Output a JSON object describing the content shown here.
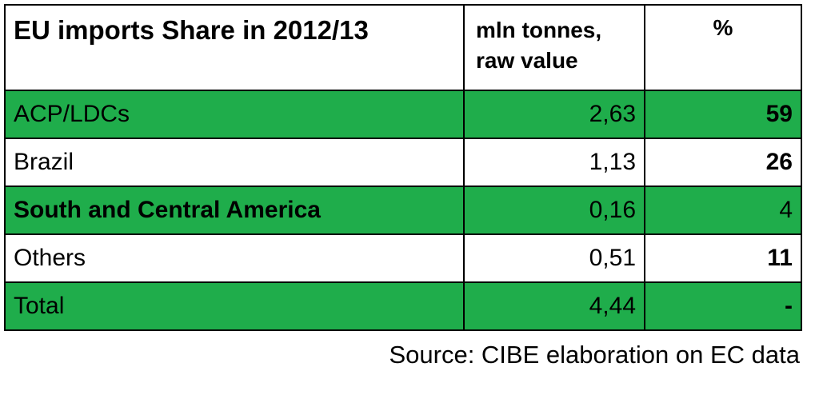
{
  "chart_data": {
    "type": "table",
    "columns": [
      "EU imports Share in 2012/13",
      "mln tonnes, raw value",
      "%"
    ],
    "header": {
      "title": "EU imports Share in 2012/13",
      "mln_line1": "mln tonnes,",
      "mln_line2": "raw value",
      "pct": "%"
    },
    "rows": [
      {
        "name": "ACP/LDCs",
        "mln": "2,63",
        "pct": "59",
        "green": true,
        "name_bold": false,
        "pct_bold": true
      },
      {
        "name": "Brazil",
        "mln": "1,13",
        "pct": "26",
        "green": false,
        "name_bold": false,
        "pct_bold": true
      },
      {
        "name": "South and Central America",
        "mln": "0,16",
        "pct": "4",
        "green": true,
        "name_bold": true,
        "pct_bold": false
      },
      {
        "name": "Others",
        "mln": "0,51",
        "pct": "11",
        "green": false,
        "name_bold": false,
        "pct_bold": true
      },
      {
        "name": "Total",
        "mln": "4,44",
        "pct": "-",
        "green": true,
        "name_bold": false,
        "pct_bold": true
      }
    ],
    "colors": {
      "row_highlight": "#1fad4b",
      "row_plain": "#ffffff",
      "border": "#000000"
    }
  },
  "source": "Source: CIBE elaboration on EC data"
}
